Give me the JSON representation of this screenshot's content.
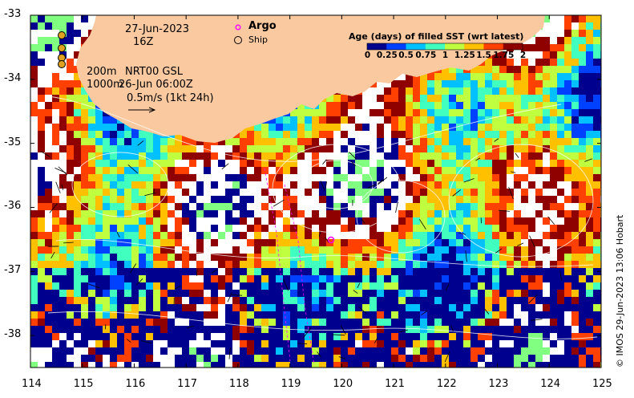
{
  "map": {
    "date": "27-Jun-2023",
    "hour": "16Z",
    "depth_200": "200m",
    "depth_1000": "1000m",
    "product": "NRT00 GSL",
    "product_time": "26-Jun 06:00Z",
    "vector_scale": "0.5m/s (1kt 24h)",
    "credit": "© IMOS 29-Jun-2023 13:06 Hobart"
  },
  "legend": {
    "argo_label": "Argo",
    "ship_label": "Ship"
  },
  "colorbar": {
    "title": "Age (days) of filled SST (wrt latest)",
    "ticks": [
      "0",
      "0.25",
      "0.5",
      "0.75",
      "1",
      "1.25",
      "1.5",
      "1.75",
      "2"
    ],
    "colors": [
      "#00008f",
      "#0040ff",
      "#00c0ff",
      "#40ffbf",
      "#bfff40",
      "#ffc000",
      "#ff4000",
      "#8f0000"
    ]
  },
  "axes": {
    "x_ticks": [
      "114",
      "115",
      "116",
      "117",
      "118",
      "119",
      "120",
      "121",
      "122",
      "123",
      "124",
      "125"
    ],
    "y_ticks": [
      "-33",
      "-34",
      "-35",
      "-36",
      "-37",
      "-38"
    ],
    "xlim": [
      114,
      125
    ],
    "ylim": [
      -38.5,
      -33
    ]
  },
  "colors": {
    "land": "#fac9a0",
    "argo": "#ff00ff",
    "no_data": "#ffffff"
  }
}
